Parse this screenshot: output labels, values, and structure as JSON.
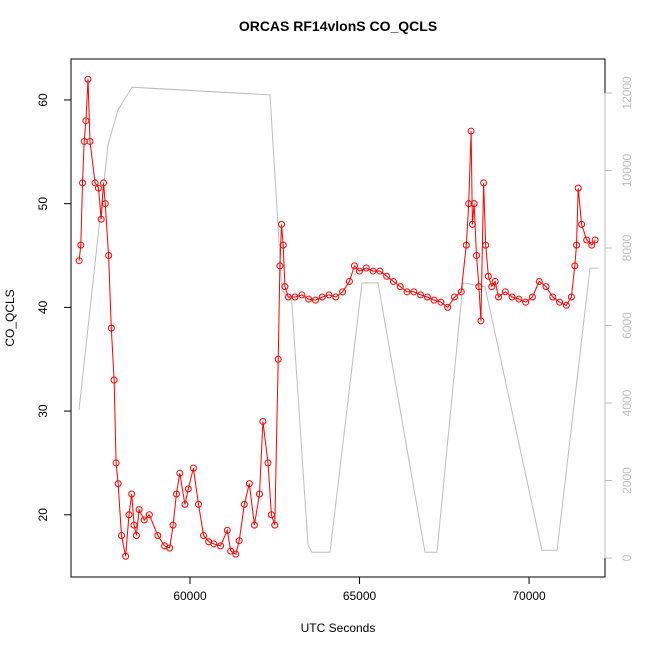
{
  "chart_data": {
    "type": "line",
    "title": "ORCAS RF14vlonS CO_QCLS",
    "x_label": "UTC Seconds",
    "y_label": "CO_QCLS",
    "xlim": [
      56490,
      72240
    ],
    "xticks": [
      60000,
      65000,
      70000
    ],
    "ylim": [
      14.0,
      63.95
    ],
    "yticks": [
      20,
      30,
      40,
      50,
      60
    ],
    "y2lim": [
      -490,
      12877
    ],
    "y2ticks": [
      0,
      2000,
      4000,
      6000,
      8000,
      10000,
      12000
    ],
    "series": [
      {
        "color": "#ff0000",
        "marker": "circle",
        "axis": "y",
        "x": [
          56730,
          56780,
          56830,
          56880,
          56930,
          56990,
          57050,
          57200,
          57300,
          57380,
          57450,
          57500,
          57600,
          57680,
          57760,
          57820,
          57880,
          57980,
          58100,
          58200,
          58280,
          58350,
          58420,
          58500,
          58650,
          58800,
          59050,
          59250,
          59400,
          59500,
          59600,
          59700,
          59850,
          59950,
          60100,
          60250,
          60400,
          60550,
          60700,
          60900,
          61100,
          61200,
          61350,
          61450,
          61600,
          61750,
          61900,
          62050,
          62150,
          62300,
          62400,
          62500,
          62600,
          62650,
          62700,
          62750,
          62800,
          62900,
          63100,
          63300,
          63500,
          63700,
          63900,
          64100,
          64300,
          64500,
          64700,
          64850,
          65000,
          65200,
          65400,
          65600,
          65800,
          66000,
          66200,
          66400,
          66600,
          66800,
          67000,
          67200,
          67400,
          67600,
          67800,
          68000,
          68150,
          68220,
          68290,
          68330,
          68380,
          68450,
          68520,
          68580,
          68660,
          68720,
          68800,
          68900,
          69000,
          69100,
          69300,
          69500,
          69700,
          69900,
          70100,
          70300,
          70500,
          70700,
          70900,
          71100,
          71250,
          71350,
          71400,
          71450,
          71550,
          71700,
          71850,
          71950
        ],
        "values": [
          44.5,
          46,
          52,
          56,
          58,
          62,
          56,
          52,
          51.5,
          48.5,
          52,
          50,
          45,
          38,
          33,
          25,
          23,
          18,
          16,
          20,
          22,
          19,
          18,
          20.5,
          19.5,
          20,
          18,
          17,
          16.8,
          19,
          22,
          24,
          21,
          22.5,
          24.5,
          21,
          18,
          17.4,
          17.2,
          17,
          18.5,
          16.5,
          16.2,
          17.5,
          21,
          23,
          19,
          22,
          29,
          25,
          20,
          19,
          35,
          44,
          48,
          46,
          42,
          41,
          41,
          41.2,
          40.8,
          40.7,
          41,
          41.2,
          41,
          41.5,
          42.5,
          44,
          43.5,
          43.8,
          43.5,
          43.5,
          43,
          42.5,
          42,
          41.5,
          41.5,
          41.2,
          41,
          40.7,
          40.5,
          40,
          41,
          41.5,
          46,
          50,
          57,
          48,
          50,
          45,
          42,
          38.7,
          52,
          46,
          43,
          42,
          42.5,
          41,
          41.5,
          41,
          40.8,
          40.5,
          41,
          42.5,
          42,
          41,
          40.5,
          40.2,
          41,
          44,
          46,
          51.5,
          48,
          46.5,
          46,
          46.5
        ]
      },
      {
        "color": "#bebebe",
        "axis": "y2",
        "x": [
          56726,
          57581,
          57876,
          58289,
          62360,
          62714,
          63000,
          63481,
          63600,
          64130,
          65074,
          65546,
          66932,
          67286,
          68053,
          68700,
          70383,
          70826,
          71799,
          72035
        ],
        "values": [
          3820,
          10660,
          11560,
          12150,
          11950,
          6900,
          6650,
          335,
          150,
          150,
          7100,
          7100,
          150,
          150,
          7100,
          7000,
          200,
          200,
          7480,
          7480
        ]
      }
    ]
  }
}
